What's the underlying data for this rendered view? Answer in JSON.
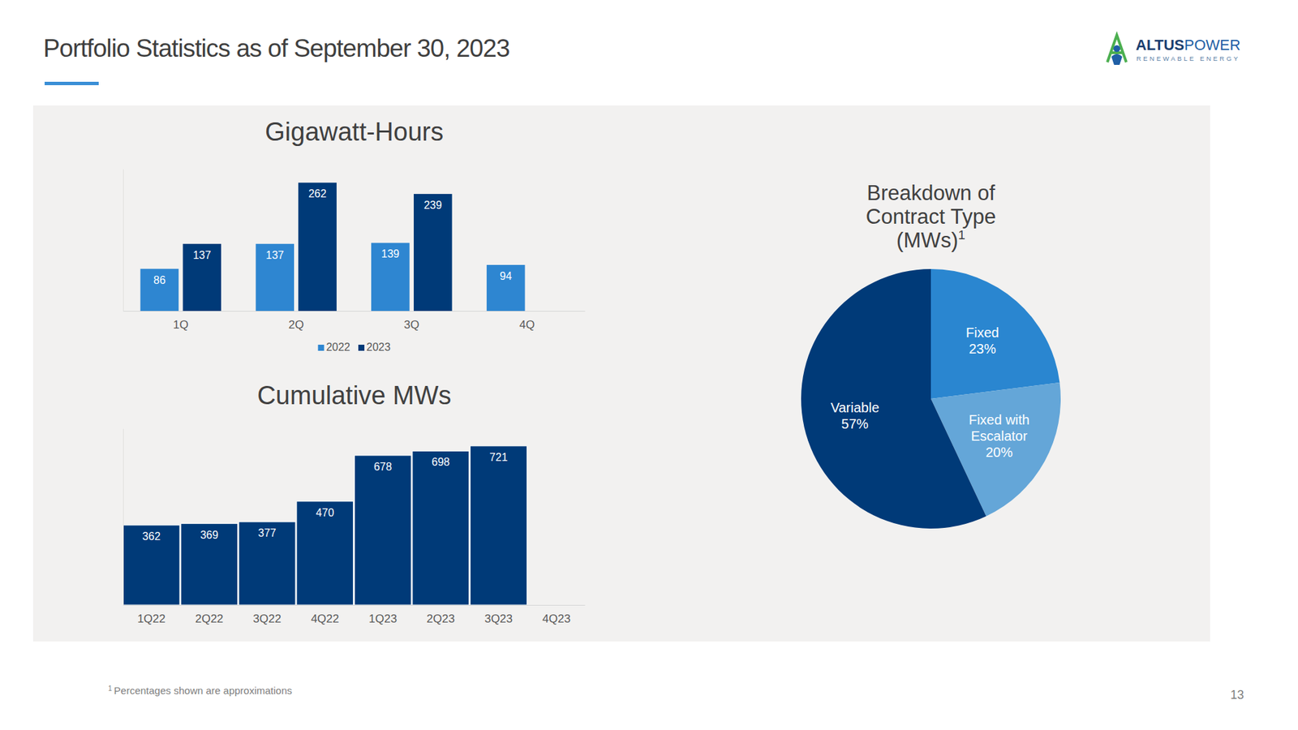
{
  "page": {
    "title": "Portfolio Statistics as of September 30, 2023",
    "logo": {
      "primary": "ALTUS",
      "secondary": "POWER",
      "tagline": "RENEWABLE ENERGY"
    },
    "footnote": {
      "marker": "1",
      "text": "Percentages shown are approximations"
    },
    "page_number": "13"
  },
  "chart_data": [
    {
      "type": "bar",
      "title": "Gigawatt-Hours",
      "categories": [
        "1Q",
        "2Q",
        "3Q",
        "4Q"
      ],
      "series": [
        {
          "name": "2022",
          "color": "#2e86d1",
          "values": [
            86,
            137,
            139,
            94
          ]
        },
        {
          "name": "2023",
          "color": "#003a78",
          "values": [
            137,
            262,
            239,
            null
          ]
        }
      ],
      "ylim": [
        0,
        290
      ],
      "tick_labels": "x",
      "data_labels": true,
      "legend": "bottom",
      "grid": false
    },
    {
      "type": "bar",
      "title": "Cumulative MWs",
      "categories": [
        "1Q22",
        "2Q22",
        "3Q22",
        "4Q22",
        "1Q23",
        "2Q23",
        "3Q23",
        "4Q23"
      ],
      "values": [
        362,
        369,
        377,
        470,
        678,
        698,
        721,
        null
      ],
      "color": "#003a78",
      "ylim": [
        0,
        800
      ],
      "tick_labels": "x",
      "data_labels": true,
      "grid": false
    },
    {
      "type": "pie",
      "title": "Breakdown of Contract Type (MWs)",
      "title_note": "1",
      "categories": [
        "Fixed",
        "Fixed with Escalator",
        "Variable"
      ],
      "values": [
        23,
        20,
        57
      ],
      "value_labels": [
        "23%",
        "20%",
        "57%"
      ],
      "colors": [
        "#2a86d0",
        "#64a6d8",
        "#003a78"
      ],
      "data_labels": true
    }
  ]
}
